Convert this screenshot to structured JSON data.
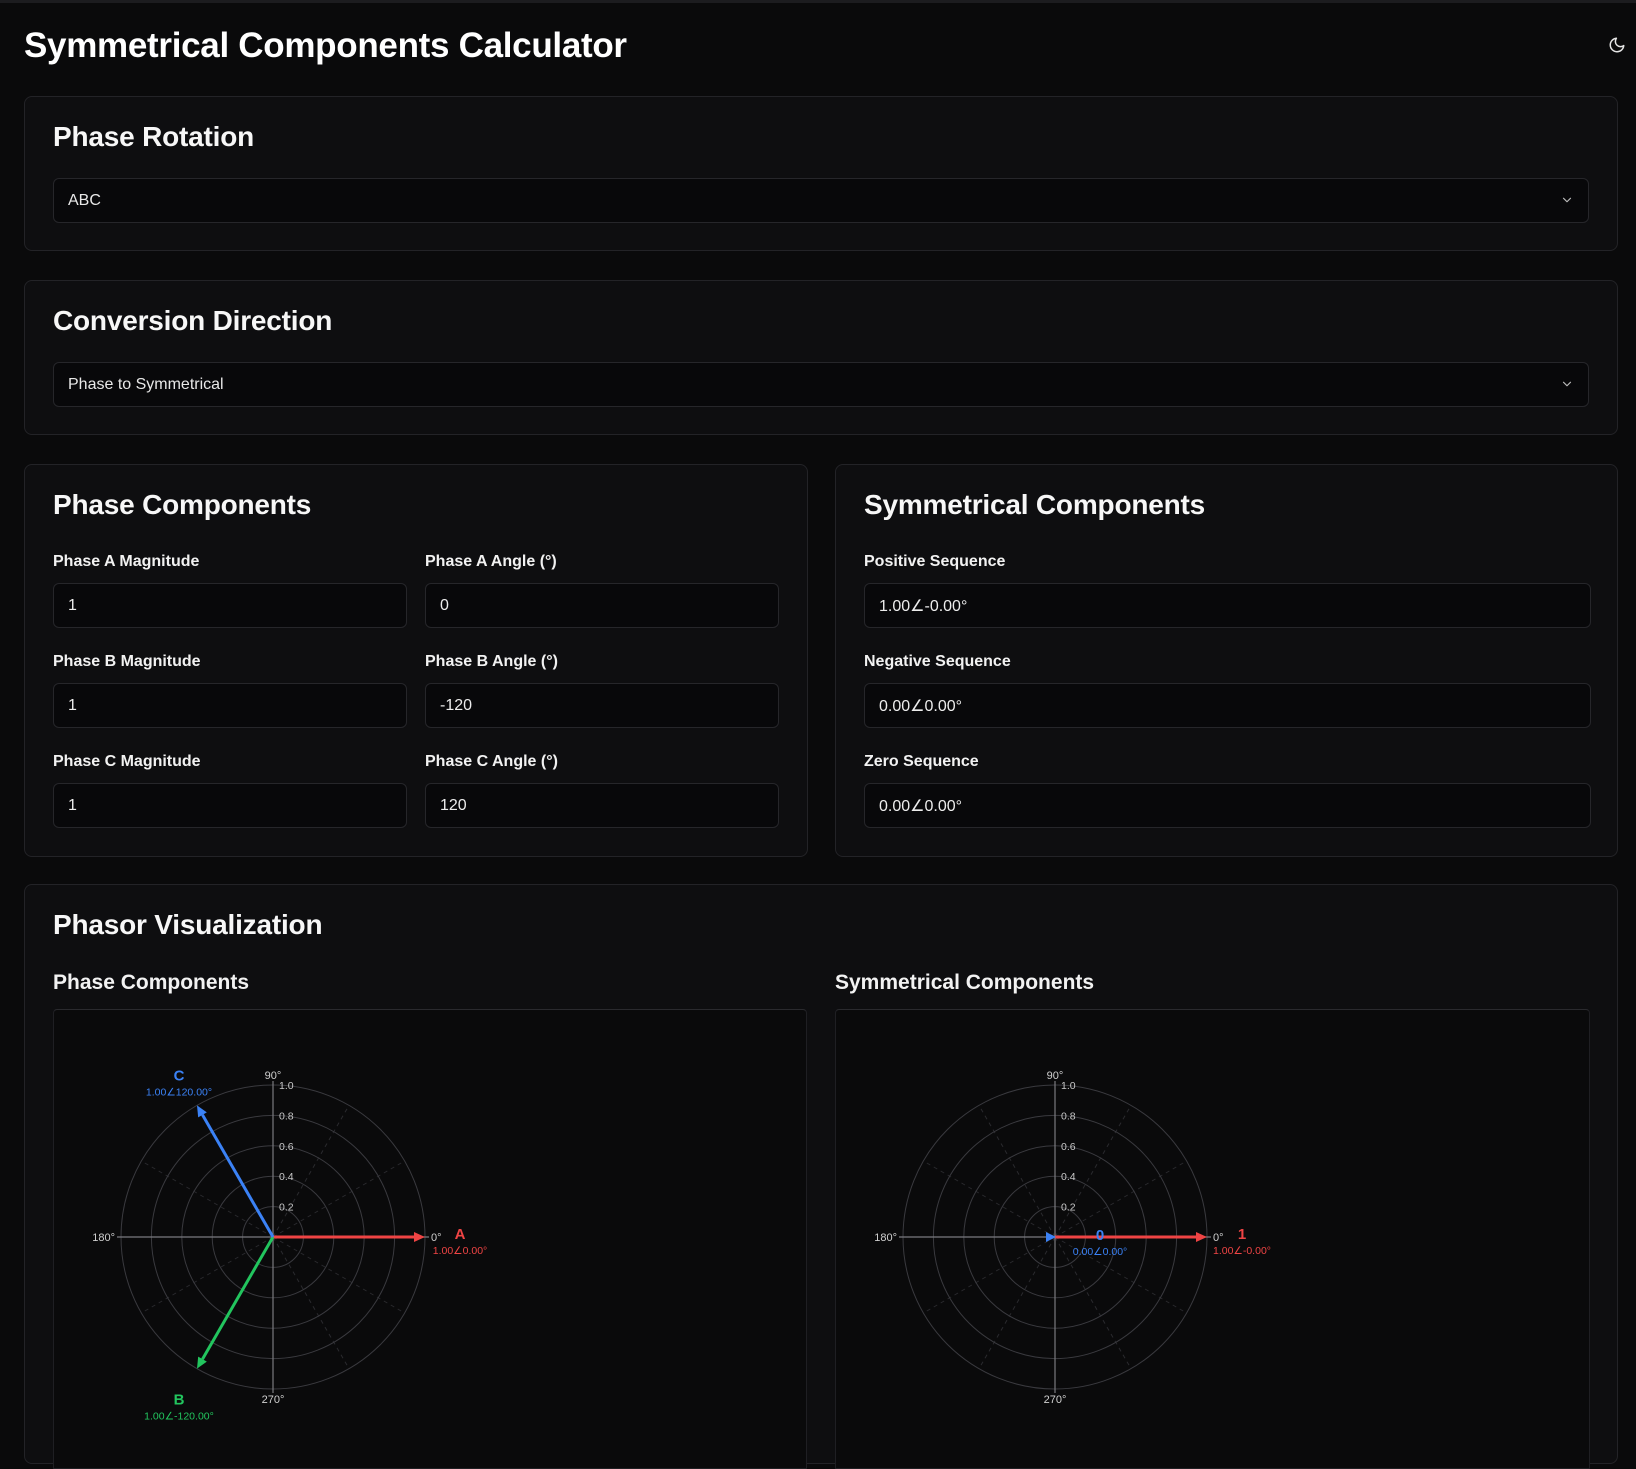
{
  "app": {
    "title": "Symmetrical Components Calculator"
  },
  "icons": {
    "theme_toggle": "moon-icon",
    "dropdown": "chevron-down-icon"
  },
  "phase_rotation": {
    "title": "Phase Rotation",
    "selected": "ABC"
  },
  "conversion_direction": {
    "title": "Conversion Direction",
    "selected": "Phase to Symmetrical"
  },
  "phase_components": {
    "title": "Phase Components",
    "fields": [
      {
        "label": "Phase A Magnitude",
        "value": "1"
      },
      {
        "label": "Phase A Angle (°)",
        "value": "0"
      },
      {
        "label": "Phase B Magnitude",
        "value": "1"
      },
      {
        "label": "Phase B Angle (°)",
        "value": "-120"
      },
      {
        "label": "Phase C Magnitude",
        "value": "1"
      },
      {
        "label": "Phase C Angle (°)",
        "value": "120"
      }
    ]
  },
  "symmetrical_components": {
    "title": "Symmetrical Components",
    "fields": [
      {
        "label": "Positive Sequence",
        "value": "1.00∠-0.00°"
      },
      {
        "label": "Negative Sequence",
        "value": "0.00∠0.00°"
      },
      {
        "label": "Zero Sequence",
        "value": "0.00∠0.00°"
      }
    ]
  },
  "visualization": {
    "title": "Phasor Visualization"
  },
  "colors": {
    "red": "#ef4444",
    "green": "#22c55e",
    "blue": "#3b82f6"
  },
  "chart_data": [
    {
      "type": "polar",
      "title": "Phase Components",
      "rlim": [
        0,
        1.0
      ],
      "radial_ticks": [
        "0.2",
        "0.4",
        "0.6",
        "0.8",
        "1.0"
      ],
      "angle_labels": [
        "0°",
        "90°",
        "180°",
        "270°"
      ],
      "series": [
        {
          "name": "A",
          "magnitude": 1.0,
          "angle": 0,
          "label": "1.00∠0.00°",
          "color": "#ef4444"
        },
        {
          "name": "B",
          "magnitude": 1.0,
          "angle": -120,
          "label": "1.00∠-120.00°",
          "color": "#22c55e"
        },
        {
          "name": "C",
          "magnitude": 1.0,
          "angle": 120,
          "label": "1.00∠120.00°",
          "color": "#3b82f6"
        }
      ]
    },
    {
      "type": "polar",
      "title": "Symmetrical Components",
      "rlim": [
        0,
        1.0
      ],
      "radial_ticks": [
        "0.2",
        "0.4",
        "0.6",
        "0.8",
        "1.0"
      ],
      "angle_labels": [
        "0°",
        "90°",
        "180°",
        "270°"
      ],
      "series": [
        {
          "name": "1",
          "magnitude": 1.0,
          "angle": 0,
          "label": "1.00∠-0.00°",
          "color": "#ef4444"
        },
        {
          "name": "0",
          "magnitude": 0.0,
          "angle": 0,
          "label": "0.00∠0.00°",
          "color": "#3b82f6"
        }
      ]
    }
  ]
}
